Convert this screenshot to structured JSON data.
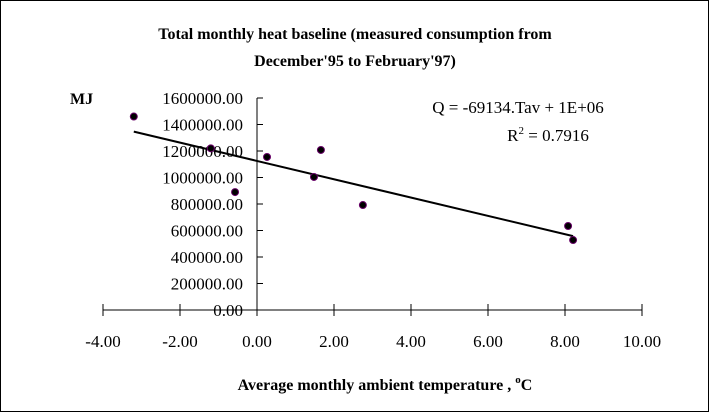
{
  "chart_data": {
    "type": "scatter",
    "title_line1": "Total monthly heat baseline (measured consumption from",
    "title_line2": "December'95 to February'97)",
    "ylabel": "MJ",
    "xlabel": "Average monthly ambient temperature , ",
    "xlabel_unit_sup": "o",
    "xlabel_unit": "C",
    "xlim": [
      -4,
      10
    ],
    "ylim": [
      0,
      1600000
    ],
    "x_ticks": [
      -4,
      -2,
      0,
      2,
      4,
      6,
      8,
      10
    ],
    "x_tick_labels": [
      "-4.00",
      "-2.00",
      "0.00",
      "2.00",
      "4.00",
      "6.00",
      "8.00",
      "10.00"
    ],
    "y_ticks": [
      0,
      200000,
      400000,
      600000,
      800000,
      1000000,
      1200000,
      1400000,
      1600000
    ],
    "y_tick_labels": [
      "0.00",
      "200000.00",
      "400000.00",
      "600000.00",
      "800000.00",
      "1000000.00",
      "1200000.00",
      "1400000.00",
      "1600000.00"
    ],
    "grid": false,
    "points": [
      {
        "x": -3.2,
        "y": 1460000
      },
      {
        "x": -1.2,
        "y": 1220000
      },
      {
        "x": -0.57,
        "y": 890000
      },
      {
        "x": 0.26,
        "y": 1155000
      },
      {
        "x": 1.48,
        "y": 1004000
      },
      {
        "x": 1.66,
        "y": 1208000
      },
      {
        "x": 2.75,
        "y": 792000
      },
      {
        "x": 8.08,
        "y": 634000
      },
      {
        "x": 8.21,
        "y": 528000
      }
    ],
    "point_color": "#000000",
    "point_edge_color": "#660066",
    "trendline": {
      "slope": -69134,
      "intercept": 1125000,
      "x_range": [
        -3.2,
        8.21
      ]
    },
    "equation_label": "Q = -69134.Tav + 1E+06",
    "r2_prefix": "R",
    "r2_sup": "2",
    "r2_value": " = 0.7916"
  }
}
